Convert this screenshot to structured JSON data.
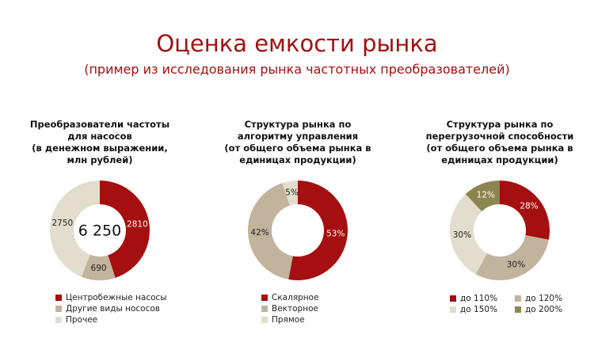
{
  "header": {
    "title": "Оценка емкости рынка",
    "subtitle": "(пример из исследования рынка частотных преобразователей)"
  },
  "chart_data": [
    {
      "type": "pie",
      "donut": true,
      "title": "Преобразователи частоты для насосов",
      "subtitle": "(в денежном выражении, млн рублей)",
      "center_label": "6 250",
      "categories": [
        "Центробежные насосы",
        "Другие виды нососов",
        "Прочее"
      ],
      "values": [
        2810,
        690,
        2750
      ],
      "colors": [
        "#a50f0f",
        "#c2b39d",
        "#e2ddcc"
      ],
      "legend_columns": 1
    },
    {
      "type": "pie",
      "donut": true,
      "title": "Структура рынка по алгоритму управления",
      "subtitle": "(от общего объема рынка в единицах продукции)",
      "categories": [
        "Скалярное",
        "Векторное",
        "Прямое"
      ],
      "values": [
        53,
        42,
        5
      ],
      "value_labels": [
        "53%",
        "42%",
        "5%"
      ],
      "colors": [
        "#a50f0f",
        "#c2b39d",
        "#e2ddcc"
      ],
      "legend_columns": 1
    },
    {
      "type": "pie",
      "donut": true,
      "title": "Структура рынка по перегрузочной способности",
      "subtitle": "(от общего объема рынка в единицах продукции)",
      "categories": [
        "до 110%",
        "до 120%",
        "до 150%",
        "до 200%"
      ],
      "values": [
        28,
        30,
        30,
        12
      ],
      "value_labels": [
        "28%",
        "30%",
        "30%",
        "12%"
      ],
      "colors": [
        "#a50f0f",
        "#c2b39d",
        "#e2ddcc",
        "#8c8550"
      ],
      "legend_columns": 2
    }
  ]
}
